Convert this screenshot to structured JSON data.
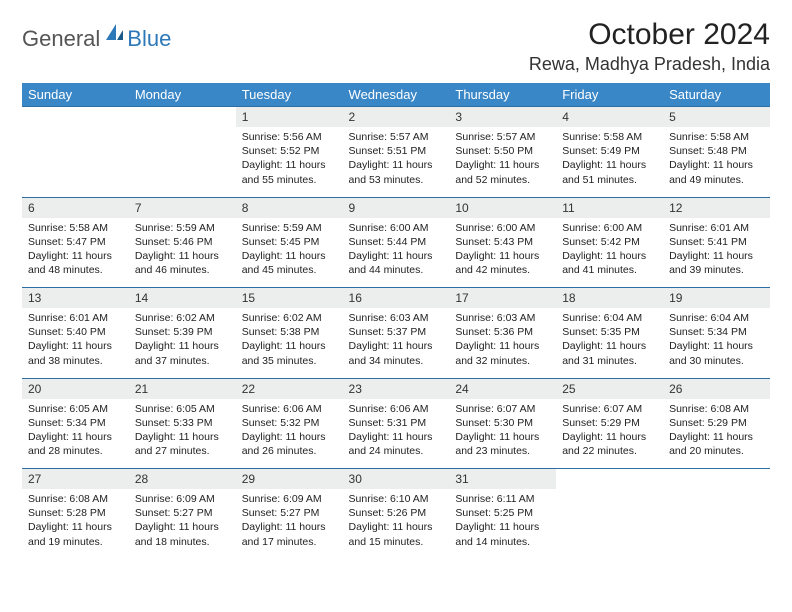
{
  "logo": {
    "text1": "General",
    "text2": "Blue"
  },
  "title": "October 2024",
  "location": "Rewa, Madhya Pradesh, India",
  "colors": {
    "header_bg": "#3a87c7",
    "header_text": "#ffffff",
    "daynum_bg": "#eceded",
    "row_border": "#2d6fa3",
    "logo_blue": "#2d78b9",
    "logo_gray": "#555555",
    "text": "#222222"
  },
  "day_headers": [
    "Sunday",
    "Monday",
    "Tuesday",
    "Wednesday",
    "Thursday",
    "Friday",
    "Saturday"
  ],
  "weeks": [
    [
      null,
      null,
      {
        "n": "1",
        "sr": "5:56 AM",
        "ss": "5:52 PM",
        "dl": "11 hours and 55 minutes."
      },
      {
        "n": "2",
        "sr": "5:57 AM",
        "ss": "5:51 PM",
        "dl": "11 hours and 53 minutes."
      },
      {
        "n": "3",
        "sr": "5:57 AM",
        "ss": "5:50 PM",
        "dl": "11 hours and 52 minutes."
      },
      {
        "n": "4",
        "sr": "5:58 AM",
        "ss": "5:49 PM",
        "dl": "11 hours and 51 minutes."
      },
      {
        "n": "5",
        "sr": "5:58 AM",
        "ss": "5:48 PM",
        "dl": "11 hours and 49 minutes."
      }
    ],
    [
      {
        "n": "6",
        "sr": "5:58 AM",
        "ss": "5:47 PM",
        "dl": "11 hours and 48 minutes."
      },
      {
        "n": "7",
        "sr": "5:59 AM",
        "ss": "5:46 PM",
        "dl": "11 hours and 46 minutes."
      },
      {
        "n": "8",
        "sr": "5:59 AM",
        "ss": "5:45 PM",
        "dl": "11 hours and 45 minutes."
      },
      {
        "n": "9",
        "sr": "6:00 AM",
        "ss": "5:44 PM",
        "dl": "11 hours and 44 minutes."
      },
      {
        "n": "10",
        "sr": "6:00 AM",
        "ss": "5:43 PM",
        "dl": "11 hours and 42 minutes."
      },
      {
        "n": "11",
        "sr": "6:00 AM",
        "ss": "5:42 PM",
        "dl": "11 hours and 41 minutes."
      },
      {
        "n": "12",
        "sr": "6:01 AM",
        "ss": "5:41 PM",
        "dl": "11 hours and 39 minutes."
      }
    ],
    [
      {
        "n": "13",
        "sr": "6:01 AM",
        "ss": "5:40 PM",
        "dl": "11 hours and 38 minutes."
      },
      {
        "n": "14",
        "sr": "6:02 AM",
        "ss": "5:39 PM",
        "dl": "11 hours and 37 minutes."
      },
      {
        "n": "15",
        "sr": "6:02 AM",
        "ss": "5:38 PM",
        "dl": "11 hours and 35 minutes."
      },
      {
        "n": "16",
        "sr": "6:03 AM",
        "ss": "5:37 PM",
        "dl": "11 hours and 34 minutes."
      },
      {
        "n": "17",
        "sr": "6:03 AM",
        "ss": "5:36 PM",
        "dl": "11 hours and 32 minutes."
      },
      {
        "n": "18",
        "sr": "6:04 AM",
        "ss": "5:35 PM",
        "dl": "11 hours and 31 minutes."
      },
      {
        "n": "19",
        "sr": "6:04 AM",
        "ss": "5:34 PM",
        "dl": "11 hours and 30 minutes."
      }
    ],
    [
      {
        "n": "20",
        "sr": "6:05 AM",
        "ss": "5:34 PM",
        "dl": "11 hours and 28 minutes."
      },
      {
        "n": "21",
        "sr": "6:05 AM",
        "ss": "5:33 PM",
        "dl": "11 hours and 27 minutes."
      },
      {
        "n": "22",
        "sr": "6:06 AM",
        "ss": "5:32 PM",
        "dl": "11 hours and 26 minutes."
      },
      {
        "n": "23",
        "sr": "6:06 AM",
        "ss": "5:31 PM",
        "dl": "11 hours and 24 minutes."
      },
      {
        "n": "24",
        "sr": "6:07 AM",
        "ss": "5:30 PM",
        "dl": "11 hours and 23 minutes."
      },
      {
        "n": "25",
        "sr": "6:07 AM",
        "ss": "5:29 PM",
        "dl": "11 hours and 22 minutes."
      },
      {
        "n": "26",
        "sr": "6:08 AM",
        "ss": "5:29 PM",
        "dl": "11 hours and 20 minutes."
      }
    ],
    [
      {
        "n": "27",
        "sr": "6:08 AM",
        "ss": "5:28 PM",
        "dl": "11 hours and 19 minutes."
      },
      {
        "n": "28",
        "sr": "6:09 AM",
        "ss": "5:27 PM",
        "dl": "11 hours and 18 minutes."
      },
      {
        "n": "29",
        "sr": "6:09 AM",
        "ss": "5:27 PM",
        "dl": "11 hours and 17 minutes."
      },
      {
        "n": "30",
        "sr": "6:10 AM",
        "ss": "5:26 PM",
        "dl": "11 hours and 15 minutes."
      },
      {
        "n": "31",
        "sr": "6:11 AM",
        "ss": "5:25 PM",
        "dl": "11 hours and 14 minutes."
      },
      null,
      null
    ]
  ],
  "labels": {
    "sunrise": "Sunrise:",
    "sunset": "Sunset:",
    "daylight": "Daylight:"
  }
}
